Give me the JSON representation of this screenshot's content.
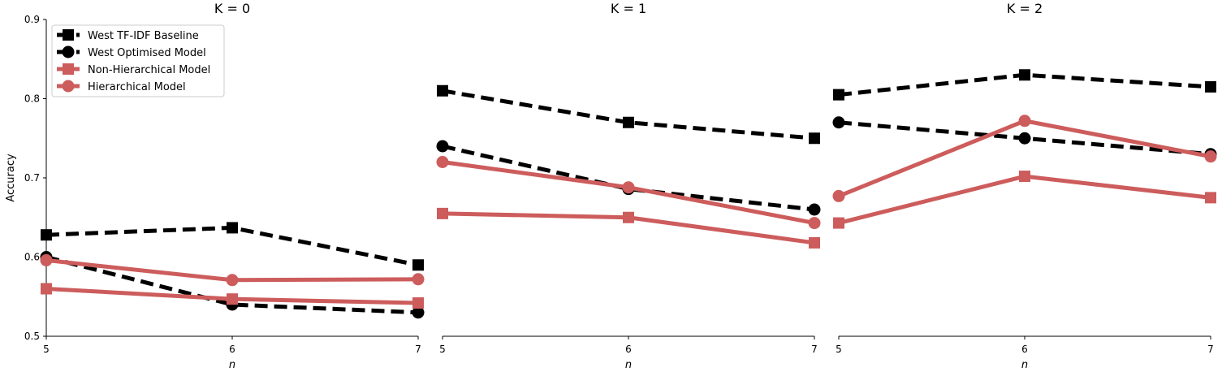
{
  "chart_data": [
    {
      "type": "line",
      "title": "K = 0",
      "xlabel": "n",
      "ylabel": "Accuracy",
      "x": [
        5,
        6,
        7
      ],
      "xlim": [
        5,
        7
      ],
      "ylim": [
        0.5,
        0.9
      ],
      "yticks": [
        "0.5",
        "0.6",
        "0.7",
        "0.8",
        "0.9"
      ],
      "xticks": [
        "5",
        "6",
        "7"
      ],
      "show_legend": true,
      "legend_position": "top-left",
      "series": [
        {
          "name": "West TF-IDF Baseline",
          "color": "#000000",
          "style": "dashed",
          "marker": "square",
          "values": [
            0.628,
            0.637,
            0.59
          ]
        },
        {
          "name": "West Optimised Model",
          "color": "#000000",
          "style": "dashed",
          "marker": "circle",
          "values": [
            0.6,
            0.54,
            0.53
          ]
        },
        {
          "name": "Non-Hierarchical Model",
          "color": "#cd5c5c",
          "style": "solid",
          "marker": "square",
          "values": [
            0.56,
            0.547,
            0.542
          ]
        },
        {
          "name": "Hierarchical Model",
          "color": "#cd5c5c",
          "style": "solid",
          "marker": "circle",
          "values": [
            0.596,
            0.571,
            0.572
          ]
        }
      ]
    },
    {
      "type": "line",
      "title": "K = 1",
      "xlabel": "n",
      "x": [
        5,
        6,
        7
      ],
      "xlim": [
        5,
        7
      ],
      "ylim": [
        0.5,
        0.9
      ],
      "xticks": [
        "5",
        "6",
        "7"
      ],
      "show_legend": false,
      "series": [
        {
          "name": "West TF-IDF Baseline",
          "color": "#000000",
          "style": "dashed",
          "marker": "square",
          "values": [
            0.81,
            0.77,
            0.75
          ]
        },
        {
          "name": "West Optimised Model",
          "color": "#000000",
          "style": "dashed",
          "marker": "circle",
          "values": [
            0.74,
            0.686,
            0.66
          ]
        },
        {
          "name": "Non-Hierarchical Model",
          "color": "#cd5c5c",
          "style": "solid",
          "marker": "square",
          "values": [
            0.655,
            0.65,
            0.618
          ]
        },
        {
          "name": "Hierarchical Model",
          "color": "#cd5c5c",
          "style": "solid",
          "marker": "circle",
          "values": [
            0.72,
            0.688,
            0.643
          ]
        }
      ]
    },
    {
      "type": "line",
      "title": "K = 2",
      "xlabel": "n",
      "x": [
        5,
        6,
        7
      ],
      "xlim": [
        5,
        7
      ],
      "ylim": [
        0.5,
        0.9
      ],
      "xticks": [
        "5",
        "6",
        "7"
      ],
      "show_legend": false,
      "series": [
        {
          "name": "West TF-IDF Baseline",
          "color": "#000000",
          "style": "dashed",
          "marker": "square",
          "values": [
            0.805,
            0.83,
            0.815
          ]
        },
        {
          "name": "West Optimised Model",
          "color": "#000000",
          "style": "dashed",
          "marker": "circle",
          "values": [
            0.77,
            0.75,
            0.73
          ]
        },
        {
          "name": "Non-Hierarchical Model",
          "color": "#cd5c5c",
          "style": "solid",
          "marker": "square",
          "values": [
            0.643,
            0.702,
            0.675
          ]
        },
        {
          "name": "Hierarchical Model",
          "color": "#cd5c5c",
          "style": "solid",
          "marker": "circle",
          "values": [
            0.677,
            0.772,
            0.727
          ]
        }
      ]
    }
  ]
}
